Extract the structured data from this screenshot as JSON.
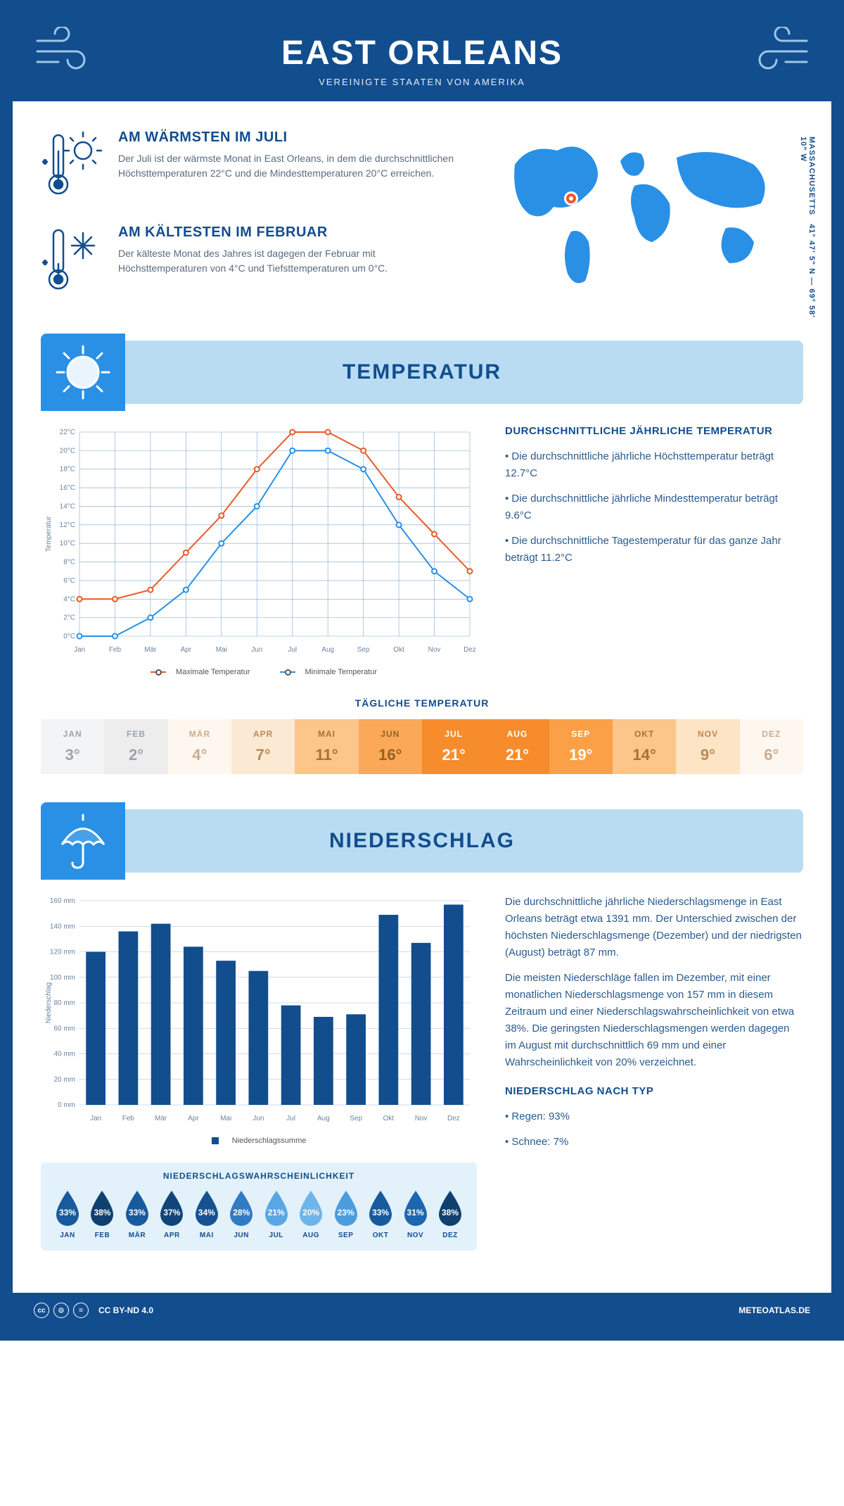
{
  "header": {
    "title": "EAST ORLEANS",
    "subtitle": "VEREINIGTE STAATEN VON AMERIKA"
  },
  "coords": {
    "lat": "41° 47' 5\" N",
    "sep": " — ",
    "lon": "69° 58' 10\" W",
    "region": "MASSACHUSETTS"
  },
  "facts": {
    "warm": {
      "heading": "AM WÄRMSTEN IM JULI",
      "body": "Der Juli ist der wärmste Monat in East Orleans, in dem die durchschnittlichen Höchsttemperaturen 22°C und die Mindesttemperaturen 20°C erreichen."
    },
    "cold": {
      "heading": "AM KÄLTESTEN IM FEBRUAR",
      "body": "Der kälteste Monat des Jahres ist dagegen der Februar mit Höchsttemperaturen von 4°C und Tiefsttemperaturen um 0°C."
    }
  },
  "temp_section": {
    "title": "TEMPERATUR",
    "heading": "DURCHSCHNITTLICHE JÄHRLICHE TEMPERATUR",
    "bullets": [
      "Die durchschnittliche jährliche Höchsttemperatur beträgt 12.7°C",
      "Die durchschnittliche jährliche Mindesttemperatur beträgt 9.6°C",
      "Die durchschnittliche Tagestemperatur für das ganze Jahr beträgt 11.2°C"
    ],
    "chart": {
      "type": "line",
      "ylabel": "Temperatur",
      "ylim": [
        0,
        22
      ],
      "ytick_step": 2,
      "ytick_suffix": "°C",
      "months": [
        "Jan",
        "Feb",
        "Mär",
        "Apr",
        "Mai",
        "Jun",
        "Jul",
        "Aug",
        "Sep",
        "Okt",
        "Nov",
        "Dez"
      ],
      "series": [
        {
          "name": "Maximale Temperatur",
          "color": "#ea5a29",
          "values": [
            4,
            4,
            5,
            9,
            13,
            18,
            22,
            22,
            20,
            15,
            11,
            7
          ]
        },
        {
          "name": "Minimale Temperatur",
          "color": "#2990e6",
          "values": [
            0,
            0,
            2,
            5,
            10,
            14,
            20,
            20,
            18,
            12,
            7,
            4
          ]
        }
      ],
      "grid_color": "#7da9cf",
      "label_fontsize": 10,
      "background_color": "#ffffff"
    },
    "daily": {
      "title": "TÄGLICHE TEMPERATUR",
      "months": [
        "JAN",
        "FEB",
        "MÄR",
        "APR",
        "MAI",
        "JUN",
        "JUL",
        "AUG",
        "SEP",
        "OKT",
        "NOV",
        "DEZ"
      ],
      "values": [
        "3°",
        "2°",
        "4°",
        "7°",
        "11°",
        "16°",
        "21°",
        "21°",
        "19°",
        "14°",
        "9°",
        "6°"
      ],
      "bg_colors": [
        "#f3f4f5",
        "#ededed",
        "#fef7ef",
        "#fce9d3",
        "#fcc58a",
        "#fba858",
        "#f78c2d",
        "#f78c2d",
        "#fba047",
        "#fcc58a",
        "#fde4c5",
        "#fef7ef"
      ],
      "text_colors": [
        "#9aa4ae",
        "#9aa4ae",
        "#c9ad8f",
        "#b98a55",
        "#a8712d",
        "#966024",
        "#ffffff",
        "#ffffff",
        "#ffffff",
        "#a8712d",
        "#b98a55",
        "#c9ad8f"
      ]
    }
  },
  "precip_section": {
    "title": "NIEDERSCHLAG",
    "chart": {
      "type": "bar",
      "ylabel": "Niederschlag",
      "ylim": [
        0,
        160
      ],
      "ytick_step": 20,
      "ytick_suffix": " mm",
      "months": [
        "Jan",
        "Feb",
        "Mär",
        "Apr",
        "Mai",
        "Jun",
        "Jul",
        "Aug",
        "Sep",
        "Okt",
        "Nov",
        "Dez"
      ],
      "values": [
        120,
        136,
        142,
        124,
        113,
        105,
        78,
        69,
        71,
        149,
        127,
        157
      ],
      "bar_color": "#124d8e",
      "grid_color": "#9bbcd8",
      "legend_label": "Niederschlagssumme"
    },
    "body1": "Die durchschnittliche jährliche Niederschlagsmenge in East Orleans beträgt etwa 1391 mm. Der Unterschied zwischen der höchsten Niederschlagsmenge (Dezember) und der niedrigsten (August) beträgt 87 mm.",
    "body2": "Die meisten Niederschläge fallen im Dezember, mit einer monatlichen Niederschlagsmenge von 157 mm in diesem Zeitraum und einer Niederschlagswahrscheinlichkeit von etwa 38%. Die geringsten Niederschlagsmengen werden dagegen im August mit durchschnittlich 69 mm und einer Wahrscheinlichkeit von 20% verzeichnet.",
    "type_heading": "NIEDERSCHLAG NACH TYP",
    "type_bullets": [
      "Regen: 93%",
      "Schnee: 7%"
    ],
    "probability": {
      "title": "NIEDERSCHLAGSWAHRSCHEINLICHKEIT",
      "months": [
        "JAN",
        "FEB",
        "MÄR",
        "APR",
        "MAI",
        "JUN",
        "JUL",
        "AUG",
        "SEP",
        "OKT",
        "NOV",
        "DEZ"
      ],
      "values": [
        "33%",
        "38%",
        "33%",
        "37%",
        "34%",
        "28%",
        "21%",
        "20%",
        "23%",
        "33%",
        "31%",
        "38%"
      ],
      "colors": [
        "#175a9e",
        "#10406f",
        "#175a9e",
        "#11457a",
        "#165293",
        "#2f7cc4",
        "#58a7e4",
        "#6db5ea",
        "#4b9cdd",
        "#175a9e",
        "#1d67b0",
        "#10406f"
      ]
    }
  },
  "footer": {
    "license": "CC BY-ND 4.0",
    "site": "METEOATLAS.DE"
  }
}
